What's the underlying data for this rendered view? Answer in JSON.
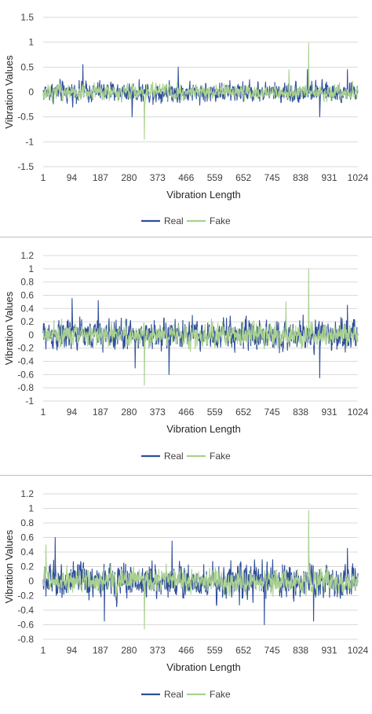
{
  "chart_data": [
    {
      "type": "line",
      "xlabel": "Vibration Length",
      "ylabel": "Vibration Values",
      "ylim": [
        -1.5,
        1.5
      ],
      "yticks": [
        "1.5",
        "1",
        "0.5",
        "0",
        "-0.5",
        "-1",
        "-1.5"
      ],
      "ytick_values": [
        1.5,
        1,
        0.5,
        0,
        -0.5,
        -1,
        -1.5
      ],
      "xlim": [
        1,
        1024
      ],
      "xticks": [
        "1",
        "94",
        "187",
        "280",
        "373",
        "466",
        "559",
        "652",
        "745",
        "838",
        "931",
        "1024"
      ],
      "grid": true,
      "legend": "bottom",
      "series": [
        {
          "name": "Real",
          "color": "#2f4f9a",
          "amplitude": 0.22,
          "spikes": [
            [
              130,
              0.55
            ],
            [
              290,
              -0.5
            ],
            [
              440,
              0.5
            ],
            [
              860,
              0.45
            ],
            [
              900,
              -0.5
            ],
            [
              990,
              0.45
            ]
          ]
        },
        {
          "name": "Fake",
          "color": "#a9d18e",
          "amplitude": 0.16,
          "spikes": [
            [
              330,
              -0.95
            ],
            [
              864,
              0.98
            ],
            [
              800,
              0.45
            ]
          ]
        }
      ]
    },
    {
      "type": "line",
      "xlabel": "Vibration Length",
      "ylabel": "Vibration Values",
      "ylim": [
        -1,
        1.2
      ],
      "yticks": [
        "1.2",
        "1",
        "0.8",
        "0.6",
        "0.4",
        "0.2",
        "0",
        "-0.2",
        "-0.4",
        "-0.6",
        "-0.8",
        "-1"
      ],
      "ytick_values": [
        1.2,
        1,
        0.8,
        0.6,
        0.4,
        0.2,
        0,
        -0.2,
        -0.4,
        -0.6,
        -0.8,
        -1
      ],
      "xlim": [
        1,
        1024
      ],
      "xticks": [
        "1",
        "94",
        "187",
        "280",
        "373",
        "466",
        "559",
        "652",
        "745",
        "838",
        "931",
        "1024"
      ],
      "grid": true,
      "legend": "bottom",
      "series": [
        {
          "name": "Real",
          "color": "#2f4f9a",
          "amplitude": 0.25,
          "spikes": [
            [
              95,
              0.55
            ],
            [
              180,
              0.52
            ],
            [
              300,
              -0.5
            ],
            [
              410,
              -0.6
            ],
            [
              900,
              -0.65
            ],
            [
              990,
              0.45
            ]
          ]
        },
        {
          "name": "Fake",
          "color": "#a9d18e",
          "amplitude": 0.18,
          "spikes": [
            [
              330,
              -0.76
            ],
            [
              864,
              1.0
            ],
            [
              790,
              0.5
            ]
          ]
        }
      ]
    },
    {
      "type": "line",
      "xlabel": "Vibration Length",
      "ylabel": "Vibration Values",
      "ylim": [
        -0.8,
        1.2
      ],
      "yticks": [
        "1.2",
        "1",
        "0.8",
        "0.6",
        "0.4",
        "0.2",
        "0",
        "-0.2",
        "-0.4",
        "-0.6",
        "-0.8"
      ],
      "ytick_values": [
        1.2,
        1,
        0.8,
        0.6,
        0.4,
        0.2,
        0,
        -0.2,
        -0.4,
        -0.6,
        -0.8
      ],
      "xlim": [
        1,
        1024
      ],
      "xticks": [
        "1",
        "94",
        "187",
        "280",
        "373",
        "466",
        "559",
        "652",
        "745",
        "838",
        "931",
        "1024"
      ],
      "grid": true,
      "legend": "bottom",
      "series": [
        {
          "name": "Real",
          "color": "#2f4f9a",
          "amplitude": 0.26,
          "spikes": [
            [
              40,
              0.6
            ],
            [
              200,
              -0.55
            ],
            [
              420,
              0.55
            ],
            [
              720,
              -0.6
            ],
            [
              880,
              -0.55
            ],
            [
              990,
              0.45
            ]
          ]
        },
        {
          "name": "Fake",
          "color": "#a9d18e",
          "amplitude": 0.18,
          "spikes": [
            [
              330,
              -0.66
            ],
            [
              864,
              0.97
            ],
            [
              10,
              0.5
            ]
          ]
        }
      ]
    }
  ]
}
